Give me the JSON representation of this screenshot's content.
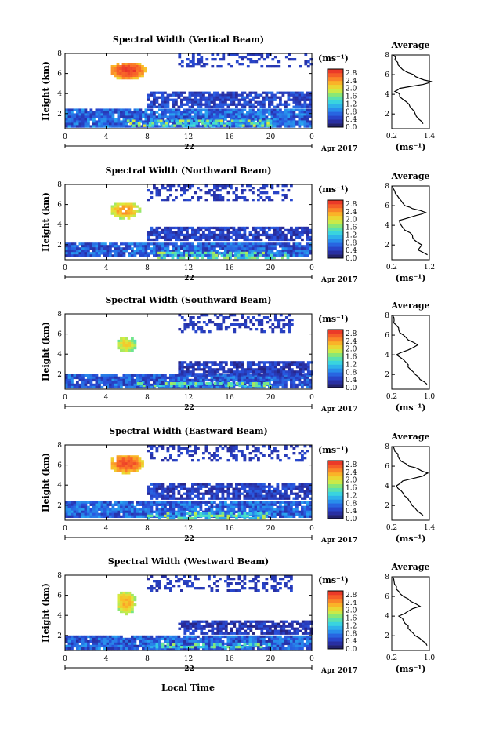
{
  "figure": {
    "xaxis_label": "Local Time",
    "date_label": "Apr 2017",
    "day_label": "22",
    "cbar_unit": "(ms⁻¹)",
    "avg_unit": "(ms⁻¹)",
    "avg_title": "Average",
    "y_label": "Height (km)"
  },
  "chart_data": [
    {
      "type": "heatmap",
      "title": "Spectral Width (Vertical Beam)",
      "xlabel": "",
      "ylabel": "Height (km)",
      "x_ticks": [
        "0",
        "4",
        "8",
        "12",
        "16",
        "20",
        "0"
      ],
      "y_ticks": [
        "2",
        "4",
        "6",
        "8"
      ],
      "xlim": [
        0,
        24
      ],
      "ylim": [
        0.5,
        8
      ],
      "colorbar": {
        "ticks": [
          "0.0",
          "0.4",
          "0.8",
          "1.2",
          "1.6",
          "2.0",
          "2.4",
          "2.8"
        ],
        "range": [
          0,
          3.0
        ]
      },
      "features": [
        {
          "kind": "blob",
          "t": [
            4.2,
            7.8
          ],
          "h": [
            5.5,
            7.3
          ],
          "value": 2.9
        },
        {
          "kind": "band",
          "t": [
            0,
            24
          ],
          "h": [
            0.8,
            2.5
          ],
          "value": 0.55
        },
        {
          "kind": "layer",
          "t": [
            8,
            24
          ],
          "h": [
            2.6,
            4.2
          ],
          "value": 0.45
        },
        {
          "kind": "upper",
          "t": [
            11,
            24
          ],
          "h": [
            6.6,
            8
          ],
          "value": 0.3
        },
        {
          "kind": "surface",
          "t": [
            6,
            20
          ],
          "h": [
            0.8,
            1.4
          ],
          "value": 1.5
        }
      ],
      "average": {
        "xticks": [
          "0.2",
          "1.4"
        ],
        "xlim": [
          0.2,
          1.4
        ],
        "yticks": [
          "2",
          "4",
          "6",
          "8"
        ],
        "h": [
          1.0,
          1.5,
          2.0,
          2.5,
          3.0,
          3.5,
          4.0,
          4.3,
          4.6,
          5.0,
          5.3,
          5.6,
          6.0,
          6.5,
          7.0,
          7.5,
          8.0
        ],
        "v": [
          1.2,
          1.05,
          0.95,
          0.85,
          0.75,
          0.55,
          0.45,
          0.3,
          0.45,
          1.2,
          1.45,
          1.1,
          0.9,
          0.55,
          0.4,
          0.3,
          0.25
        ]
      }
    },
    {
      "type": "heatmap",
      "title": "Spectral Width (Northward Beam)",
      "xlabel": "",
      "ylabel": "Height (km)",
      "x_ticks": [
        "0",
        "4",
        "8",
        "12",
        "16",
        "20",
        "0"
      ],
      "y_ticks": [
        "2",
        "4",
        "6",
        "8"
      ],
      "xlim": [
        0,
        24
      ],
      "ylim": [
        0.5,
        8
      ],
      "colorbar": {
        "ticks": [
          "0.0",
          "0.4",
          "0.8",
          "1.2",
          "1.6",
          "2.0",
          "2.4",
          "2.8"
        ],
        "range": [
          0,
          3.0
        ]
      },
      "features": [
        {
          "kind": "blob",
          "t": [
            4.2,
            7.2
          ],
          "h": [
            4.7,
            6.4
          ],
          "value": 2.4
        },
        {
          "kind": "band",
          "t": [
            0,
            24
          ],
          "h": [
            0.8,
            2.2
          ],
          "value": 0.5
        },
        {
          "kind": "layer",
          "t": [
            8,
            24
          ],
          "h": [
            2.4,
            3.8
          ],
          "value": 0.4
        },
        {
          "kind": "upper",
          "t": [
            8,
            22
          ],
          "h": [
            6.4,
            8
          ],
          "value": 0.3
        },
        {
          "kind": "surface",
          "t": [
            9,
            22
          ],
          "h": [
            0.8,
            1.3
          ],
          "value": 1.4
        }
      ],
      "average": {
        "xticks": [
          "0.2",
          "1.2"
        ],
        "xlim": [
          0.2,
          1.2
        ],
        "yticks": [
          "2",
          "4",
          "6",
          "8"
        ],
        "h": [
          1.0,
          1.5,
          2.0,
          2.5,
          3.0,
          3.5,
          4.0,
          4.5,
          5.0,
          5.3,
          5.7,
          6.0,
          6.5,
          7.0,
          7.5,
          8.0
        ],
        "v": [
          1.15,
          0.9,
          1.0,
          0.8,
          0.75,
          0.55,
          0.45,
          0.4,
          0.85,
          1.1,
          0.75,
          0.55,
          0.45,
          0.35,
          0.28,
          0.22
        ]
      }
    },
    {
      "type": "heatmap",
      "title": "Spectral Width (Southward Beam)",
      "xlabel": "",
      "ylabel": "Height (km)",
      "x_ticks": [
        "0",
        "4",
        "8",
        "12",
        "16",
        "20",
        "0"
      ],
      "y_ticks": [
        "2",
        "4",
        "6",
        "8"
      ],
      "xlim": [
        0,
        24
      ],
      "ylim": [
        0.5,
        8
      ],
      "colorbar": {
        "ticks": [
          "0.0",
          "0.4",
          "0.8",
          "1.2",
          "1.6",
          "2.0",
          "2.4",
          "2.8"
        ],
        "range": [
          0,
          3.0
        ]
      },
      "features": [
        {
          "kind": "blob",
          "t": [
            4.8,
            6.8
          ],
          "h": [
            4.3,
            5.9
          ],
          "value": 2.1
        },
        {
          "kind": "band",
          "t": [
            0,
            24
          ],
          "h": [
            0.8,
            2.0
          ],
          "value": 0.5
        },
        {
          "kind": "layer",
          "t": [
            11,
            24
          ],
          "h": [
            2.0,
            3.3
          ],
          "value": 0.35
        },
        {
          "kind": "upper",
          "t": [
            11,
            22
          ],
          "h": [
            6.2,
            8
          ],
          "value": 0.3
        },
        {
          "kind": "surface",
          "t": [
            7,
            20
          ],
          "h": [
            0.8,
            1.2
          ],
          "value": 1.3
        }
      ],
      "average": {
        "xticks": [
          "0.2",
          "1.0"
        ],
        "xlim": [
          0.2,
          1.0
        ],
        "yticks": [
          "2",
          "4",
          "6",
          "8"
        ],
        "h": [
          1.0,
          1.5,
          2.0,
          2.5,
          3.0,
          3.5,
          4.0,
          4.5,
          5.0,
          5.5,
          6.0,
          6.5,
          7.0,
          7.5,
          8.0
        ],
        "v": [
          0.95,
          0.8,
          0.7,
          0.6,
          0.55,
          0.45,
          0.3,
          0.55,
          0.75,
          0.55,
          0.45,
          0.35,
          0.3,
          0.25,
          0.22
        ]
      }
    },
    {
      "type": "heatmap",
      "title": "Spectral Width (Eastward Beam)",
      "xlabel": "",
      "ylabel": "Height (km)",
      "x_ticks": [
        "0",
        "4",
        "8",
        "12",
        "16",
        "20",
        "0"
      ],
      "y_ticks": [
        "2",
        "4",
        "6",
        "8"
      ],
      "xlim": [
        0,
        24
      ],
      "ylim": [
        0.5,
        8
      ],
      "colorbar": {
        "ticks": [
          "0.0",
          "0.4",
          "0.8",
          "1.2",
          "1.6",
          "2.0",
          "2.4",
          "2.8"
        ],
        "range": [
          0,
          3.0
        ]
      },
      "features": [
        {
          "kind": "blob",
          "t": [
            4.2,
            7.5
          ],
          "h": [
            5.3,
            7.2
          ],
          "value": 2.8
        },
        {
          "kind": "band",
          "t": [
            0,
            24
          ],
          "h": [
            0.8,
            2.4
          ],
          "value": 0.55
        },
        {
          "kind": "layer",
          "t": [
            8,
            24
          ],
          "h": [
            2.6,
            4.2
          ],
          "value": 0.4
        },
        {
          "kind": "upper",
          "t": [
            8,
            24
          ],
          "h": [
            6.4,
            8
          ],
          "value": 0.3
        },
        {
          "kind": "surface",
          "t": [
            8,
            20
          ],
          "h": [
            0.8,
            1.3
          ],
          "value": 1.4
        }
      ],
      "average": {
        "xticks": [
          "0.2",
          "1.4"
        ],
        "xlim": [
          0.2,
          1.4
        ],
        "yticks": [
          "2",
          "4",
          "6",
          "8"
        ],
        "h": [
          1.0,
          1.5,
          2.0,
          2.5,
          3.0,
          3.5,
          4.0,
          4.5,
          5.0,
          5.3,
          5.7,
          6.0,
          6.5,
          7.0,
          7.5,
          8.0
        ],
        "v": [
          1.2,
          1.0,
          0.85,
          0.75,
          0.6,
          0.5,
          0.35,
          0.55,
          1.2,
          1.35,
          1.05,
          0.75,
          0.5,
          0.4,
          0.3,
          0.25
        ]
      }
    },
    {
      "type": "heatmap",
      "title": "Spectral Width (Westward Beam)",
      "xlabel": "Local Time",
      "ylabel": "Height (km)",
      "x_ticks": [
        "0",
        "4",
        "8",
        "12",
        "16",
        "20",
        "0"
      ],
      "y_ticks": [
        "2",
        "4",
        "6",
        "8"
      ],
      "xlim": [
        0,
        24
      ],
      "ylim": [
        0.5,
        8
      ],
      "colorbar": {
        "ticks": [
          "0.0",
          "0.4",
          "0.8",
          "1.2",
          "1.6",
          "2.0",
          "2.4",
          "2.8"
        ],
        "range": [
          0,
          3.0
        ]
      },
      "features": [
        {
          "kind": "blob",
          "t": [
            4.8,
            6.8
          ],
          "h": [
            4.2,
            6.6
          ],
          "value": 2.3
        },
        {
          "kind": "band",
          "t": [
            0,
            24
          ],
          "h": [
            0.8,
            2.0
          ],
          "value": 0.5
        },
        {
          "kind": "layer",
          "t": [
            11,
            24
          ],
          "h": [
            2.2,
            3.5
          ],
          "value": 0.35
        },
        {
          "kind": "upper",
          "t": [
            8,
            22
          ],
          "h": [
            6.4,
            8
          ],
          "value": 0.3
        },
        {
          "kind": "surface",
          "t": [
            8,
            20
          ],
          "h": [
            0.8,
            1.2
          ],
          "value": 1.3
        }
      ],
      "average": {
        "xticks": [
          "0.2",
          "1.0"
        ],
        "xlim": [
          0.2,
          1.0
        ],
        "yticks": [
          "2",
          "4",
          "6",
          "8"
        ],
        "h": [
          1.0,
          1.5,
          2.0,
          2.5,
          3.0,
          3.5,
          4.0,
          4.5,
          5.0,
          5.5,
          6.0,
          6.5,
          7.0,
          7.5,
          8.0
        ],
        "v": [
          0.95,
          0.85,
          0.7,
          0.6,
          0.55,
          0.45,
          0.35,
          0.55,
          0.8,
          0.6,
          0.45,
          0.35,
          0.3,
          0.25,
          0.22
        ]
      }
    }
  ]
}
